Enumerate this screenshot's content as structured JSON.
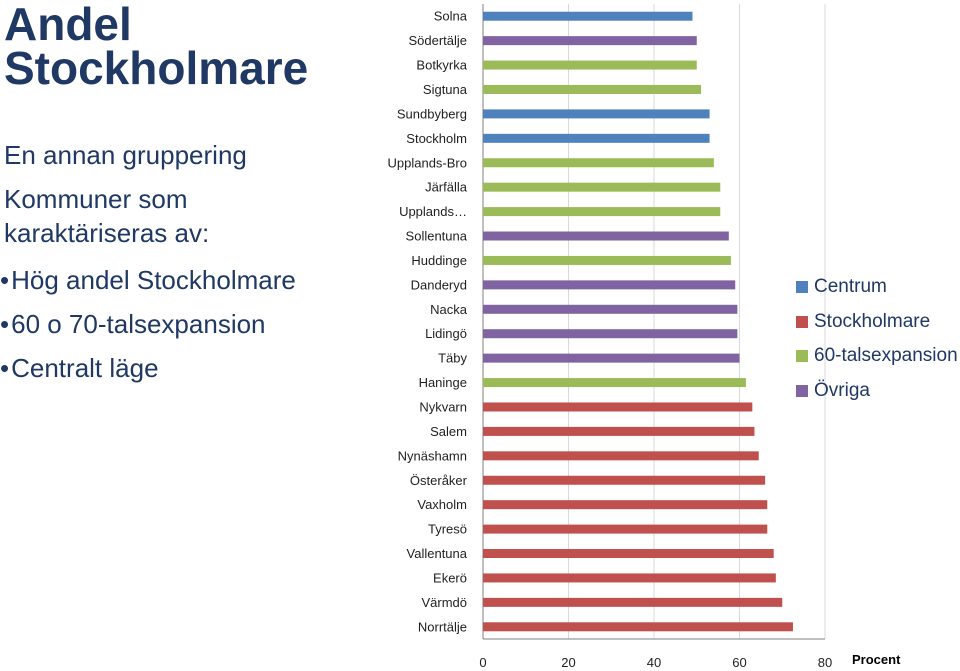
{
  "slide": {
    "title_lines": [
      "Andel",
      "Stockholmare"
    ],
    "subtitle": "En annan  gruppering",
    "description": "Kommuner som karaktäriseras av:",
    "bullets": [
      "Hög andel Stockholmare",
      "60 o 70-talsexpansion",
      "Centralt läge"
    ]
  },
  "colors": {
    "Centrum": "#4f81bd",
    "Stockholmare": "#c0504d",
    "60-talsexpansion": "#9bbb59",
    "Övriga": "#8064a2"
  },
  "chart_data": {
    "type": "bar",
    "orientation": "horizontal",
    "xlabel": "Procent",
    "xlim": [
      0,
      80
    ],
    "xticks": [
      0,
      20,
      40,
      60,
      80
    ],
    "grid": true,
    "legend_position": "right",
    "legend": [
      "Centrum",
      "Stockholmare",
      "60-talsexpansion",
      "Övriga"
    ],
    "categories": [
      "Solna",
      "Södertälje",
      "Botkyrka",
      "Sigtuna",
      "Sundbyberg",
      "Stockholm",
      "Upplands-Bro",
      "Järfälla",
      "Upplands…",
      "Sollentuna",
      "Huddinge",
      "Danderyd",
      "Nacka",
      "Lidingö",
      "Täby",
      "Haninge",
      "Nykvarn",
      "Salem",
      "Nynäshamn",
      "Österåker",
      "Vaxholm",
      "Tyresö",
      "Vallentuna",
      "Ekerö",
      "Värmdö",
      "Norrtälje"
    ],
    "values": [
      49,
      50,
      50,
      51,
      53,
      53,
      54,
      55.5,
      55.5,
      57.5,
      58,
      59,
      59.5,
      59.5,
      60,
      61.5,
      63,
      63.5,
      64.5,
      66,
      66.5,
      66.5,
      68,
      68.5,
      70,
      72.5
    ],
    "groups": [
      "Centrum",
      "Övriga",
      "60-talsexpansion",
      "60-talsexpansion",
      "Centrum",
      "Centrum",
      "60-talsexpansion",
      "60-talsexpansion",
      "60-talsexpansion",
      "Övriga",
      "60-talsexpansion",
      "Övriga",
      "Övriga",
      "Övriga",
      "Övriga",
      "60-talsexpansion",
      "Stockholmare",
      "Stockholmare",
      "Stockholmare",
      "Stockholmare",
      "Stockholmare",
      "Stockholmare",
      "Stockholmare",
      "Stockholmare",
      "Stockholmare",
      "Stockholmare"
    ]
  }
}
